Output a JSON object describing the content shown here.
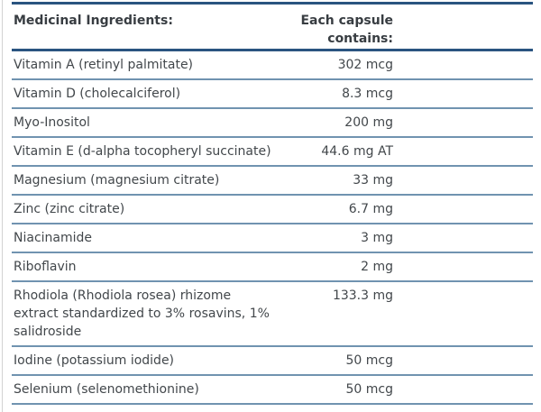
{
  "theme": {
    "heavy_rule": "#2a5480",
    "light_rule": "#7093b0",
    "text": "#42474b",
    "header_text": "#383d42",
    "edge_line": "#d3d3d3",
    "bg": "#ffffff"
  },
  "table": {
    "header": {
      "col1": "Medicinal Ingredients:",
      "col2": "Each capsule\ncontains:"
    },
    "rows": [
      {
        "name": "Vitamin A (retinyl palmitate)",
        "value": "302 mcg"
      },
      {
        "name": "Vitamin D (cholecalciferol)",
        "value": "8.3 mcg"
      },
      {
        "name": "Myo-Inositol",
        "value": "200 mg"
      },
      {
        "name": "Vitamin E (d-alpha tocopheryl succinate)",
        "value": "44.6 mg AT"
      },
      {
        "name": "Magnesium (magnesium citrate)",
        "value": "33 mg"
      },
      {
        "name": "Zinc (zinc citrate)",
        "value": "6.7 mg"
      },
      {
        "name": "Niacinamide",
        "value": "3 mg"
      },
      {
        "name": "Riboflavin",
        "value": "2 mg"
      },
      {
        "name": "Rhodiola (Rhodiola rosea) rhizome\nextract standardized to 3% rosavins, 1%\nsalidroside",
        "value": "133.3 mg"
      },
      {
        "name": "Iodine (potassium iodide)",
        "value": "50 mcg"
      },
      {
        "name": "Selenium (selenomethionine)",
        "value": "50 mcg"
      }
    ]
  }
}
